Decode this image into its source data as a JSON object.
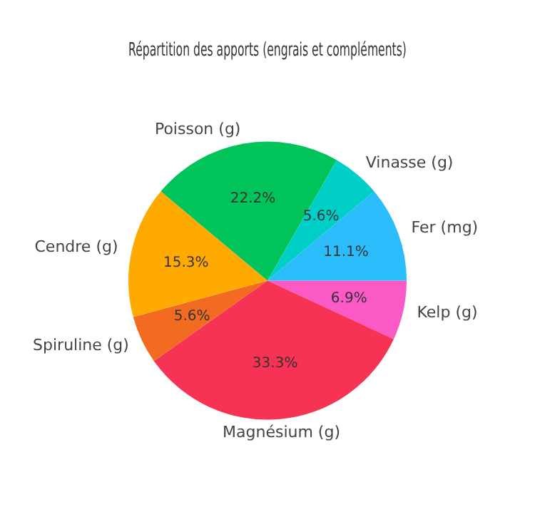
{
  "chart_data": {
    "type": "pie",
    "title": "Répartition des apports (engrais et compléments)",
    "categories": [
      "Kelp (g)",
      "Magnésium (g)",
      "Spiruline (g)",
      "Cendre (g)",
      "Poisson (g)",
      "Vinasse (g)",
      "Fer (mg)"
    ],
    "values": [
      6.9,
      33.3,
      5.6,
      15.3,
      22.2,
      5.6,
      11.1
    ],
    "colors": [
      "#fb59c5",
      "#f63354",
      "#f26b21",
      "#ffaa00",
      "#00c45a",
      "#00cfc8",
      "#2bbcfc"
    ],
    "value_labels": [
      "6.9%",
      "33.3%",
      "5.6%",
      "15.3%",
      "22.2%",
      "5.6%",
      "11.1%"
    ],
    "legend": false
  }
}
